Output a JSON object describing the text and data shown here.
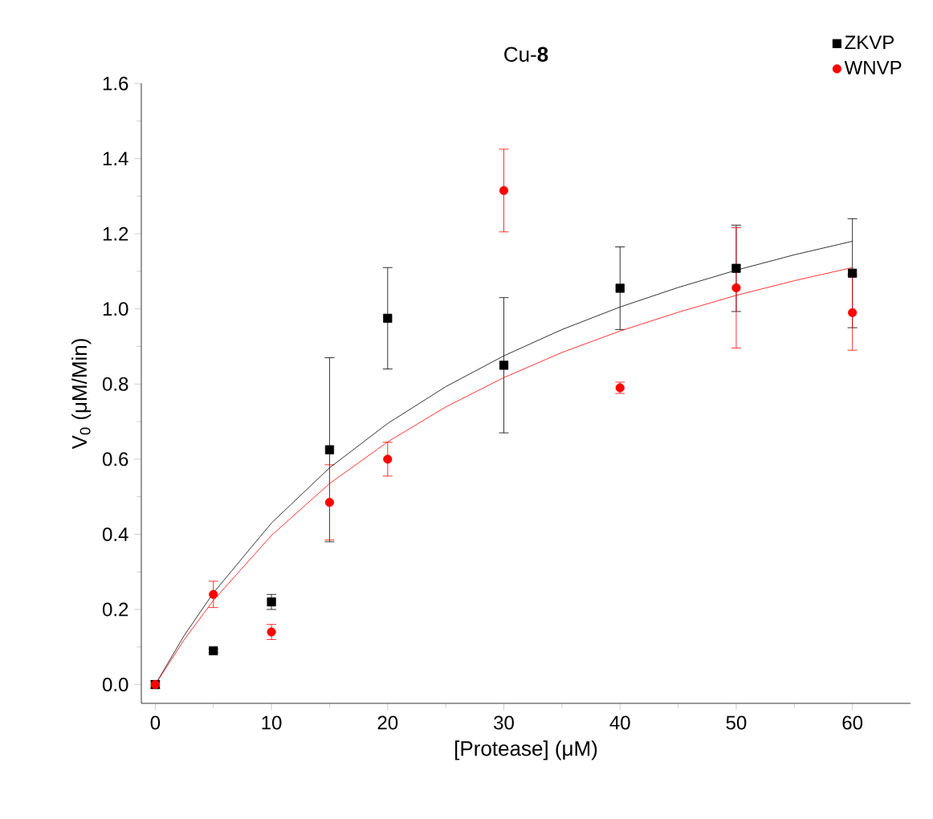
{
  "chart_data": {
    "type": "scatter",
    "title": "Cu-**8**",
    "xlabel": "[Protease] (μM)",
    "ylabel": "V$_{0}$ (μM/Min)",
    "xlim": [
      -1.2,
      65
    ],
    "ylim": [
      -0.05,
      1.6
    ],
    "xticks": [
      0,
      10,
      20,
      30,
      40,
      50,
      60
    ],
    "yticks": [
      {
        "value": 0,
        "label": "0.0"
      },
      {
        "value": 0.2,
        "label": "0.2"
      },
      {
        "value": 0.4,
        "label": "0.4"
      },
      {
        "value": 0.6,
        "label": "0.6"
      },
      {
        "value": 0.8,
        "label": "0.8"
      },
      {
        "value": 1.0,
        "label": "1.0"
      },
      {
        "value": 1.2,
        "label": "1.2"
      },
      {
        "value": 1.4,
        "label": "1.4"
      },
      {
        "value": 1.6,
        "label": "1.6"
      }
    ],
    "grid": false,
    "legend": "top right",
    "series": [
      {
        "name": "ZKVP",
        "color": "#000000",
        "marker": "square",
        "x": [
          0,
          5,
          10,
          15,
          20,
          30,
          40,
          50,
          60
        ],
        "values": [
          0,
          0.09,
          0.22,
          0.625,
          0.975,
          0.85,
          1.055,
          1.108,
          1.095
        ],
        "errors": [
          0.01,
          0.005,
          0.02,
          0.245,
          0.135,
          0.18,
          0.11,
          0.115,
          0.145
        ]
      },
      {
        "name": "WNVP",
        "color": "#ff0000",
        "marker": "circle",
        "x": [
          0,
          5,
          10,
          15,
          20,
          30,
          40,
          50,
          60
        ],
        "values": [
          0,
          0.24,
          0.14,
          0.485,
          0.6,
          1.315,
          0.79,
          1.056,
          0.99
        ],
        "errors": [
          0.01,
          0.035,
          0.02,
          0.1,
          0.045,
          0.11,
          0.015,
          0.16,
          0.1
        ]
      },
      {
        "type": "line",
        "color": "#000000",
        "marker": "none",
        "x": [
          0,
          2.5,
          5,
          10,
          15,
          20,
          25,
          30,
          35,
          40,
          45,
          50,
          55,
          60
        ],
        "values": [
          0,
          0.131,
          0.244,
          0.43,
          0.577,
          0.695,
          0.793,
          0.875,
          0.945,
          1.005,
          1.057,
          1.103,
          1.144,
          1.18
        ]
      },
      {
        "type": "line",
        "color": "#ff0000",
        "marker": "none",
        "x": [
          0,
          2.5,
          5,
          10,
          15,
          20,
          25,
          30,
          35,
          40,
          45,
          50,
          55,
          60
        ],
        "values": [
          0,
          0.12,
          0.224,
          0.397,
          0.535,
          0.646,
          0.739,
          0.817,
          0.884,
          0.941,
          0.991,
          1.036,
          1.075,
          1.11
        ]
      }
    ]
  }
}
